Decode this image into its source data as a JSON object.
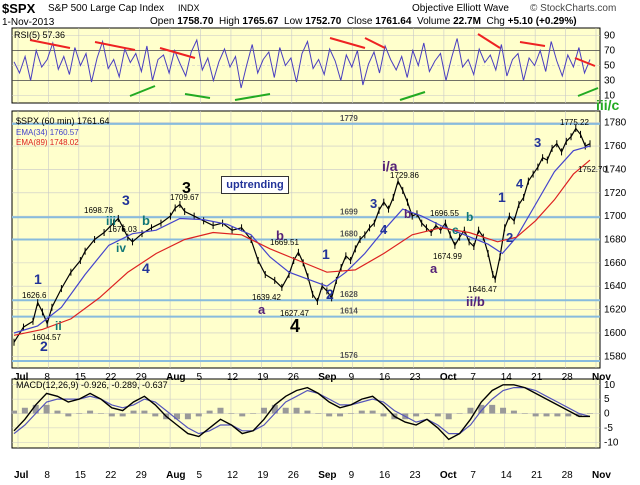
{
  "header": {
    "symbol": "$SPX",
    "name": "S&P 500 Large Cap Index",
    "exchange": "INDX",
    "brand": "Objective Elliott Wave",
    "copyright": "© StockCharts.com",
    "date": "1-Nov-2013",
    "open_label": "Open",
    "open": "1758.70",
    "high_label": "High",
    "high": "1765.67",
    "low_label": "Low",
    "low": "1752.70",
    "close_label": "Close",
    "close": "1761.64",
    "volume_label": "Volume",
    "volume": "22.7M",
    "chg_label": "Chg",
    "chg": "+5.10 (+0.29%)"
  },
  "legend": {
    "rsi": "RSI(5) 57.36",
    "price": "$SPX (60 min) 1761.64",
    "ema34": "EMA(34) 1760.57",
    "ema89": "EMA(89) 1748.02",
    "macd": "MACD(12,26,9) -0.926, -0.289, -0.637"
  },
  "colors": {
    "panel_bg": "#ffffcc",
    "price": "#000000",
    "ema34": "#4444cc",
    "ema89": "#dd2222",
    "rsi": "#4a3fc0",
    "wave_blue": "#223399",
    "wave_purple": "#552277",
    "wave_teal": "#117777",
    "support_line": "#88bbdd",
    "trend_red": "#ee2222",
    "trend_green": "#22aa22"
  },
  "annotation_box": "uptrending",
  "chart_data": [
    {
      "type": "line",
      "title": "$SPX (60 min)",
      "x_ticks": [
        "Jul",
        "8",
        "15",
        "22",
        "29",
        "Aug",
        "5",
        "12",
        "19",
        "26",
        "Sep",
        "9",
        "16",
        "23",
        "Oct",
        "7",
        "14",
        "21",
        "28",
        "Nov"
      ],
      "ylim": [
        1570,
        1790
      ],
      "y_ticks": [
        1580,
        1600,
        1620,
        1640,
        1660,
        1680,
        1700,
        1720,
        1740,
        1760,
        1780
      ],
      "grid": true,
      "support_levels": [
        {
          "value": 1779,
          "label": "1779"
        },
        {
          "value": 1699,
          "label": "1699"
        },
        {
          "value": 1680,
          "label": "1680"
        },
        {
          "value": 1628,
          "label": "1628"
        },
        {
          "value": 1614,
          "label": "1614"
        },
        {
          "value": 1576,
          "label": "1576"
        }
      ],
      "series": [
        {
          "name": "$SPX",
          "points": [
            [
              0,
              1592
            ],
            [
              4,
              1605
            ],
            [
              8,
              1610
            ],
            [
              10,
              1626
            ],
            [
              12,
              1618
            ],
            [
              14,
              1608
            ],
            [
              16,
              1622
            ],
            [
              20,
              1638
            ],
            [
              24,
              1652
            ],
            [
              28,
              1662
            ],
            [
              30,
              1670
            ],
            [
              34,
              1680
            ],
            [
              38,
              1686
            ],
            [
              42,
              1694
            ],
            [
              44,
              1698
            ],
            [
              46,
              1690
            ],
            [
              48,
              1682
            ],
            [
              50,
              1678
            ],
            [
              54,
              1685
            ],
            [
              58,
              1690
            ],
            [
              62,
              1694
            ],
            [
              66,
              1700
            ],
            [
              68,
              1707
            ],
            [
              70,
              1710
            ],
            [
              72,
              1704
            ],
            [
              76,
              1700
            ],
            [
              80,
              1696
            ],
            [
              84,
              1692
            ],
            [
              88,
              1694
            ],
            [
              92,
              1688
            ],
            [
              96,
              1690
            ],
            [
              100,
              1680
            ],
            [
              103,
              1662
            ],
            [
              106,
              1650
            ],
            [
              110,
              1645
            ],
            [
              113,
              1639
            ],
            [
              116,
              1650
            ],
            [
              118,
              1662
            ],
            [
              120,
              1669
            ],
            [
              122,
              1660
            ],
            [
              124,
              1648
            ],
            [
              126,
              1633
            ],
            [
              128,
              1627
            ],
            [
              130,
              1640
            ],
            [
              132,
              1636
            ],
            [
              134,
              1630
            ],
            [
              136,
              1645
            ],
            [
              138,
              1656
            ],
            [
              140,
              1666
            ],
            [
              142,
              1662
            ],
            [
              144,
              1672
            ],
            [
              146,
              1680
            ],
            [
              148,
              1684
            ],
            [
              150,
              1690
            ],
            [
              152,
              1694
            ],
            [
              154,
              1705
            ],
            [
              156,
              1712
            ],
            [
              158,
              1706
            ],
            [
              160,
              1716
            ],
            [
              162,
              1730
            ],
            [
              164,
              1722
            ],
            [
              166,
              1712
            ],
            [
              168,
              1700
            ],
            [
              170,
              1702
            ],
            [
              172,
              1694
            ],
            [
              174,
              1690
            ],
            [
              176,
              1686
            ],
            [
              178,
              1692
            ],
            [
              180,
              1688
            ],
            [
              182,
              1694
            ],
            [
              184,
              1684
            ],
            [
              186,
              1675
            ],
            [
              188,
              1682
            ],
            [
              190,
              1688
            ],
            [
              192,
              1678
            ],
            [
              194,
              1674
            ],
            [
              196,
              1688
            ],
            [
              198,
              1682
            ],
            [
              200,
              1668
            ],
            [
              202,
              1650
            ],
            [
              203,
              1646
            ],
            [
              205,
              1665
            ],
            [
              207,
              1690
            ],
            [
              209,
              1700
            ],
            [
              211,
              1696
            ],
            [
              213,
              1710
            ],
            [
              215,
              1716
            ],
            [
              217,
              1730
            ],
            [
              219,
              1736
            ],
            [
              221,
              1742
            ],
            [
              223,
              1750
            ],
            [
              225,
              1748
            ],
            [
              227,
              1758
            ],
            [
              229,
              1762
            ],
            [
              231,
              1755
            ],
            [
              233,
              1764
            ],
            [
              235,
              1768
            ],
            [
              237,
              1775
            ],
            [
              239,
              1770
            ],
            [
              241,
              1760
            ],
            [
              243,
              1762
            ]
          ]
        },
        {
          "name": "EMA(34)",
          "points": [
            [
              0,
              1600
            ],
            [
              10,
              1606
            ],
            [
              20,
              1622
            ],
            [
              30,
              1650
            ],
            [
              40,
              1675
            ],
            [
              50,
              1685
            ],
            [
              60,
              1688
            ],
            [
              70,
              1698
            ],
            [
              80,
              1697
            ],
            [
              90,
              1693
            ],
            [
              100,
              1684
            ],
            [
              108,
              1665
            ],
            [
              116,
              1652
            ],
            [
              124,
              1646
            ],
            [
              132,
              1640
            ],
            [
              140,
              1652
            ],
            [
              148,
              1668
            ],
            [
              156,
              1688
            ],
            [
              164,
              1706
            ],
            [
              172,
              1700
            ],
            [
              180,
              1692
            ],
            [
              190,
              1684
            ],
            [
              200,
              1676
            ],
            [
              206,
              1668
            ],
            [
              212,
              1682
            ],
            [
              220,
              1710
            ],
            [
              228,
              1738
            ],
            [
              236,
              1756
            ],
            [
              243,
              1760
            ]
          ]
        },
        {
          "name": "EMA(89)",
          "points": [
            [
              0,
              1598
            ],
            [
              12,
              1603
            ],
            [
              24,
              1612
            ],
            [
              36,
              1630
            ],
            [
              48,
              1652
            ],
            [
              60,
              1668
            ],
            [
              72,
              1680
            ],
            [
              84,
              1686
            ],
            [
              96,
              1684
            ],
            [
              108,
              1672
            ],
            [
              120,
              1662
            ],
            [
              132,
              1652
            ],
            [
              144,
              1654
            ],
            [
              156,
              1668
            ],
            [
              168,
              1684
            ],
            [
              180,
              1690
            ],
            [
              192,
              1686
            ],
            [
              204,
              1678
            ],
            [
              212,
              1682
            ],
            [
              220,
              1696
            ],
            [
              228,
              1714
            ],
            [
              236,
              1736
            ],
            [
              243,
              1748
            ]
          ]
        }
      ],
      "price_labels": [
        "1626.6",
        "1604.57",
        "1698.78",
        "1676.03",
        "1709.67",
        "1669.51",
        "1639.42",
        "1627.47",
        "1729.86",
        "1696.55",
        "1674.99",
        "1646.47",
        "1775.22",
        "1752.70"
      ],
      "wave_labels": [
        "1",
        "2",
        "ii",
        "iii",
        "iv",
        "3",
        "b",
        "4",
        "3",
        "b",
        "a",
        "4",
        "1",
        "2",
        "3",
        "4",
        "i/a",
        "b",
        "a",
        "c",
        "b",
        "ii/b",
        "1",
        "2",
        "3",
        "4",
        "iii/c"
      ]
    },
    {
      "type": "line",
      "title": "RSI(5)",
      "ylim": [
        0,
        100
      ],
      "y_ticks": [
        10,
        30,
        50,
        70,
        90
      ],
      "series": [
        {
          "name": "RSI(5)",
          "values": [
            55,
            40,
            62,
            30,
            70,
            48,
            58,
            80,
            45,
            62,
            38,
            74,
            50,
            66,
            28,
            60,
            82,
            46,
            58,
            35,
            72,
            54,
            66,
            42,
            76,
            30,
            58,
            64,
            40,
            70,
            52,
            36,
            68,
            84,
            44,
            60,
            30,
            55,
            72,
            48,
            62,
            20,
            50,
            78,
            40,
            58,
            68,
            34,
            74,
            50,
            60,
            28,
            66,
            82,
            46,
            58,
            38,
            72,
            56,
            30,
            64,
            48,
            70,
            24,
            52,
            68,
            40,
            76,
            58,
            44,
            62,
            34,
            70,
            50,
            80,
            42,
            56,
            66,
            30,
            60,
            86,
            48,
            58,
            38,
            72,
            54,
            64,
            44,
            78,
            36,
            58,
            66,
            30,
            60,
            50,
            70,
            42,
            82,
            56,
            36,
            64,
            48,
            74,
            40,
            58
          ]
        }
      ]
    },
    {
      "type": "line",
      "title": "MACD(12,26,9)",
      "ylim": [
        -12,
        12
      ],
      "y_ticks": [
        -10,
        -5,
        0,
        5,
        10
      ],
      "series": [
        {
          "name": "MACD",
          "values": [
            -6,
            -2,
            3,
            7,
            6,
            4,
            5,
            7,
            5,
            2,
            1,
            4,
            6,
            3,
            -1,
            -4,
            -7,
            -8,
            -5,
            -2,
            -4,
            -7,
            -6,
            -2,
            3,
            6,
            8,
            9,
            7,
            4,
            2,
            3,
            5,
            6,
            3,
            -1,
            -3,
            -4,
            -2,
            -5,
            -9,
            -7,
            -2,
            4,
            8,
            10,
            10,
            9,
            7,
            5,
            3,
            1,
            -1,
            -1
          ]
        },
        {
          "name": "Signal",
          "values": [
            -7,
            -4,
            0,
            4,
            5,
            5,
            5,
            6,
            5,
            3,
            2,
            3,
            5,
            4,
            1,
            -2,
            -5,
            -7,
            -6,
            -4,
            -4,
            -6,
            -6,
            -4,
            0,
            4,
            6,
            8,
            7,
            5,
            3,
            3,
            4,
            5,
            4,
            1,
            -1,
            -3,
            -2,
            -4,
            -7,
            -7,
            -4,
            1,
            5,
            8,
            9,
            9,
            8,
            6,
            4,
            2,
            0,
            -1
          ]
        }
      ]
    }
  ]
}
